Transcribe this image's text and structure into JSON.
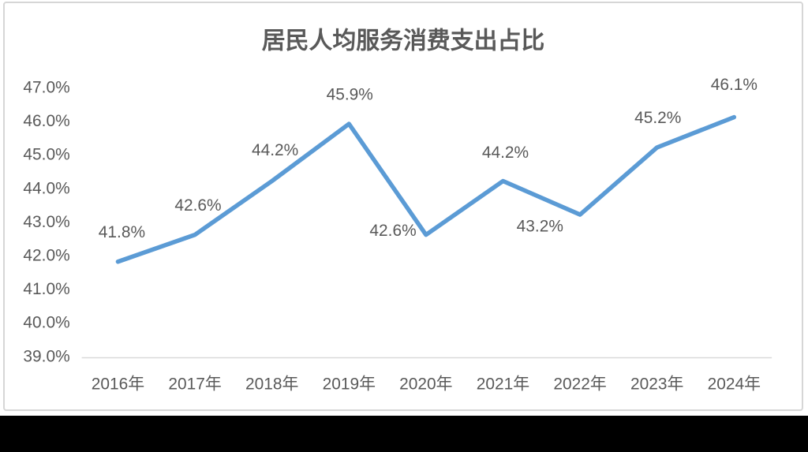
{
  "chart_data": {
    "type": "line",
    "title": "居民人均服务消费支出占比",
    "categories": [
      "2016年",
      "2017年",
      "2018年",
      "2019年",
      "2020年",
      "2021年",
      "2022年",
      "2023年",
      "2024年"
    ],
    "values": [
      41.8,
      42.6,
      44.2,
      45.9,
      42.6,
      44.2,
      43.2,
      45.2,
      46.1
    ],
    "data_labels": [
      "41.8%",
      "42.6%",
      "44.2%",
      "45.9%",
      "42.6%",
      "44.2%",
      "43.2%",
      "45.2%",
      "46.1%"
    ],
    "y_tick_labels": [
      "39.0%",
      "40.0%",
      "41.0%",
      "42.0%",
      "43.0%",
      "44.0%",
      "45.0%",
      "46.0%",
      "47.0%"
    ],
    "ylim": [
      39.0,
      47.0
    ],
    "y_tick_step": 1.0,
    "grid": false,
    "legend": "none",
    "data_label_position": "above points (2020 left of point, 2022 below-left of point)",
    "colors": {
      "line": "#5b9bd5",
      "text": "#595959",
      "axis_line": "#d9d9d9",
      "card_border": "#d6d6d6",
      "background": "#ffffff",
      "bottom_bar": "#000000"
    }
  }
}
